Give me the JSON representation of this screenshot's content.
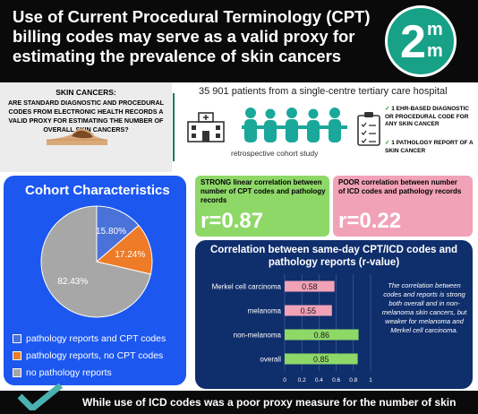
{
  "header": {
    "title": "Use of Current Procedural Terminology (CPT) billing codes may serve as a valid proxy for estimating the prevalence of skin cancers",
    "logo_digit": "2",
    "logo_letter_top": "m",
    "logo_letter_bottom": "m"
  },
  "question": {
    "heading": "SKIN CANCERS:",
    "text": "Are standard diagnostic and procedural codes from electronic health records a valid proxy for estimating the number of overall skin cancers?"
  },
  "study": {
    "patients": "35 901 patients from a single-centre tertiary care hospital",
    "design": "retrospective cohort study",
    "criteria": [
      "1 EHR-BASED DIAGNOSTIC OR PROCEDURAL CODE FOR ANY SKIN CANCER",
      "1 PATHOLOGY REPORT OF A SKIN CANCER"
    ],
    "check_glyph": "✓"
  },
  "cohort": {
    "title": "Cohort Characteristics",
    "colors": [
      "#4a72d8",
      "#ee7b27",
      "#a7a7a7"
    ],
    "chart_data": {
      "type": "pie",
      "labels": [
        "pathology reports and CPT codes",
        "pathology reports, no CPT codes",
        "no pathology reports"
      ],
      "values": [
        15.8,
        17.24,
        82.43
      ],
      "value_labels": [
        "15.80%",
        "17.24%",
        "82.43%"
      ]
    }
  },
  "strong": {
    "heading": "STRONG linear correlation between number of CPT codes and pathology records",
    "value": "r=0.87",
    "color": "#8ed868"
  },
  "poor": {
    "heading": "POOR correlation between number of ICD codes and pathology records",
    "value": "r=0.22",
    "color": "#f1a2b7"
  },
  "correlation": {
    "title": "Correlation between same-day CPT/ICD codes and pathology reports (r-value)",
    "note": "The correlation between codes and reports is strong both overall and in non-melanoma skin cancers, but weaker for melanoma and Merkel cell carcinoma.",
    "colors": {
      "weak": "#f1a2b7",
      "strong": "#8ed868"
    },
    "chart_data": {
      "type": "bar",
      "orientation": "horizontal",
      "categories": [
        "Merkel cell carcinoma",
        "melanoma",
        "non-melanoma",
        "overall"
      ],
      "values": [
        0.58,
        0.55,
        0.86,
        0.85
      ],
      "value_labels": [
        "0.58",
        "0.55",
        "0.86",
        "0.85"
      ],
      "xlim": [
        0,
        1
      ],
      "xticks": [
        "0",
        "0.2",
        "0.4",
        "0.6",
        "0.8",
        "1"
      ]
    }
  },
  "bottom": {
    "text": "While use of ICD codes was a poor proxy measure for the number of skin"
  }
}
